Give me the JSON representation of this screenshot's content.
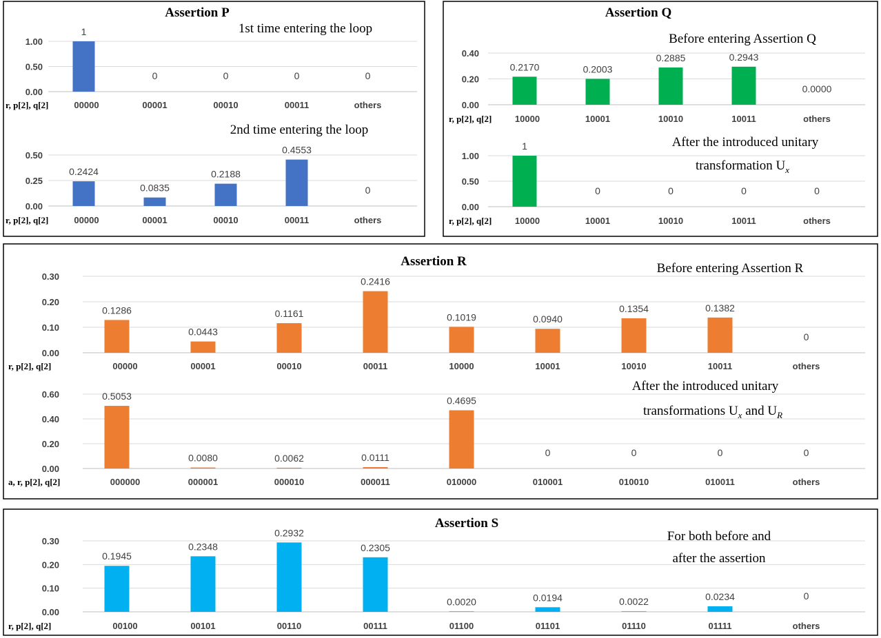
{
  "chart_data": [
    {
      "type": "bar",
      "title": "Assertion P",
      "annotation": [
        "1st time entering the loop"
      ],
      "xlabel": "r, p[2], q[2]",
      "categories": [
        "00000",
        "00001",
        "00010",
        "00011",
        "others"
      ],
      "values": [
        1,
        0,
        0,
        0,
        0
      ],
      "labels": [
        "1",
        "0",
        "0",
        "0",
        "0"
      ],
      "ylim": [
        0,
        1.0
      ],
      "yticks": [
        "0.00",
        "0.50",
        "1.00"
      ],
      "color": "#4472c4"
    },
    {
      "type": "bar",
      "title": "",
      "annotation": [
        "2nd time entering the loop"
      ],
      "xlabel": "r, p[2], q[2]",
      "categories": [
        "00000",
        "00001",
        "00010",
        "00011",
        "others"
      ],
      "values": [
        0.2424,
        0.0835,
        0.2188,
        0.4553,
        0
      ],
      "labels": [
        "0.2424",
        "0.0835",
        "0.2188",
        "0.4553",
        "0"
      ],
      "ylim": [
        0,
        0.5
      ],
      "yticks": [
        "0.00",
        "0.25",
        "0.50"
      ],
      "color": "#4472c4"
    },
    {
      "type": "bar",
      "title": "Assertion Q",
      "annotation": [
        "Before entering Assertion Q"
      ],
      "xlabel": "r, p[2], q[2]",
      "categories": [
        "10000",
        "10001",
        "10010",
        "10011",
        "others"
      ],
      "values": [
        0.217,
        0.2003,
        0.2885,
        0.2943,
        0
      ],
      "labels": [
        "0.2170",
        "0.2003",
        "0.2885",
        "0.2943",
        "0.0000"
      ],
      "ylim": [
        0,
        0.4
      ],
      "yticks": [
        "0.00",
        "0.20",
        "0.40"
      ],
      "color": "#00b050"
    },
    {
      "type": "bar",
      "title": "",
      "annotation": [
        "After the introduced unitary",
        "transformation U",
        "x"
      ],
      "xlabel": "r, p[2], q[2]",
      "categories": [
        "10000",
        "10001",
        "10010",
        "10011",
        "others"
      ],
      "values": [
        1,
        0,
        0,
        0,
        0
      ],
      "labels": [
        "1",
        "0",
        "0",
        "0",
        "0"
      ],
      "ylim": [
        0,
        1.0
      ],
      "yticks": [
        "0.00",
        "0.50",
        "1.00"
      ],
      "color": "#00b050"
    },
    {
      "type": "bar",
      "title": "Assertion R",
      "annotation": [
        "Before entering Assertion R"
      ],
      "xlabel": "r, p[2], q[2]",
      "categories": [
        "00000",
        "00001",
        "00010",
        "00011",
        "10000",
        "10001",
        "10010",
        "10011",
        "others"
      ],
      "values": [
        0.1286,
        0.0443,
        0.1161,
        0.2416,
        0.1019,
        0.094,
        0.1354,
        0.1382,
        0
      ],
      "labels": [
        "0.1286",
        "0.0443",
        "0.1161",
        "0.2416",
        "0.1019",
        "0.0940",
        "0.1354",
        "0.1382",
        "0"
      ],
      "ylim": [
        0,
        0.3
      ],
      "yticks": [
        "0.00",
        "0.10",
        "0.20",
        "0.30"
      ],
      "color": "#ed7d31"
    },
    {
      "type": "bar",
      "title": "",
      "annotation": [
        "After the introduced unitary",
        "transformations U",
        "x",
        " and U",
        "R"
      ],
      "xlabel": "a, r, p[2], q[2]",
      "categories": [
        "000000",
        "000001",
        "000010",
        "000011",
        "010000",
        "010001",
        "010010",
        "010011",
        "others"
      ],
      "values": [
        0.5053,
        0.008,
        0.0062,
        0.0111,
        0.4695,
        0,
        0,
        0,
        0
      ],
      "labels": [
        "0.5053",
        "0.0080",
        "0.0062",
        "0.0111",
        "0.4695",
        "0",
        "0",
        "0",
        "0"
      ],
      "ylim": [
        0,
        0.6
      ],
      "yticks": [
        "0.00",
        "0.20",
        "0.40",
        "0.60"
      ],
      "color": "#ed7d31"
    },
    {
      "type": "bar",
      "title": "Assertion S",
      "annotation": [
        "For both before and",
        "after the assertion"
      ],
      "xlabel": "r, p[2], q[2]",
      "categories": [
        "00100",
        "00101",
        "00110",
        "00111",
        "01100",
        "01101",
        "01110",
        "01111",
        "others"
      ],
      "values": [
        0.1945,
        0.2348,
        0.2932,
        0.2305,
        0.002,
        0.0194,
        0.0022,
        0.0234,
        0
      ],
      "labels": [
        "0.1945",
        "0.2348",
        "0.2932",
        "0.2305",
        "0.0020",
        "0.0194",
        "0.0022",
        "0.0234",
        "0"
      ],
      "ylim": [
        0,
        0.3
      ],
      "yticks": [
        "0.00",
        "0.10",
        "0.20",
        "0.30"
      ],
      "color": "#00b0f0"
    }
  ]
}
